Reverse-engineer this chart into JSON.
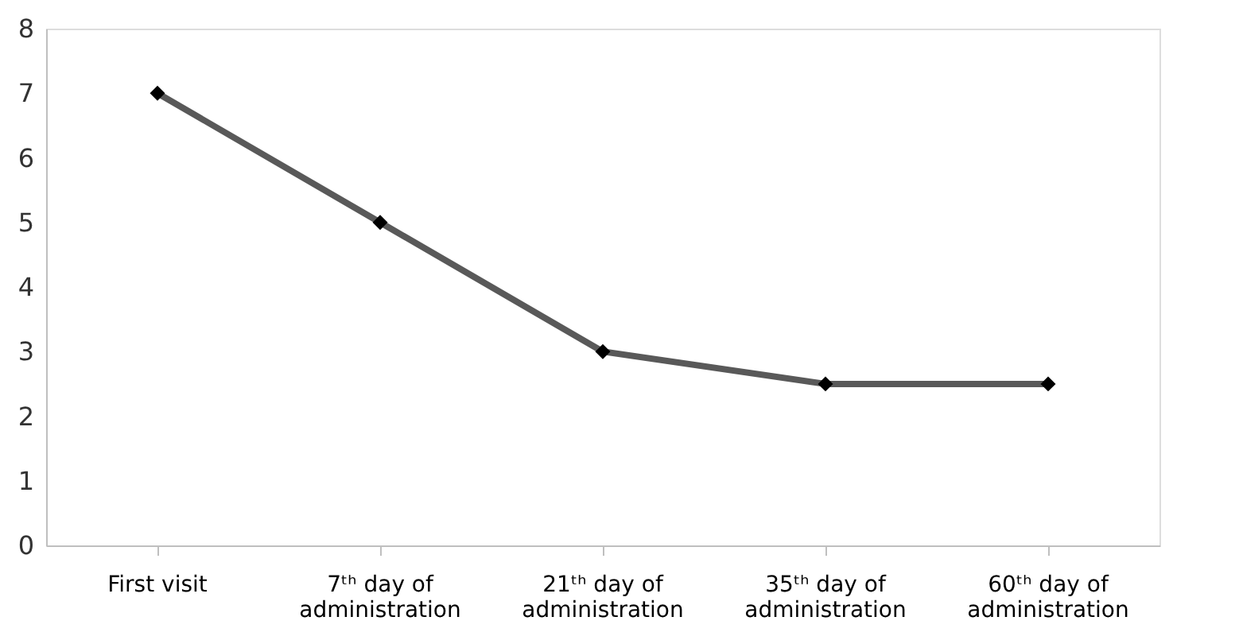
{
  "chart_data": {
    "type": "line",
    "categories": [
      "First visit",
      "7ᵗʰ day of administration",
      "21ᵗʰ day of administration",
      "35ᵗʰ day of administration",
      "60ᵗʰ day of administration"
    ],
    "series": [
      {
        "color": "#595959",
        "values": [
          7,
          5,
          3,
          2.5,
          2.5
        ]
      }
    ],
    "ylim": [
      0,
      8
    ],
    "yticks": [
      0,
      1,
      2,
      3,
      4,
      5,
      6,
      7,
      8
    ],
    "grid": false,
    "marker": "diamond",
    "line_style": "solid"
  }
}
